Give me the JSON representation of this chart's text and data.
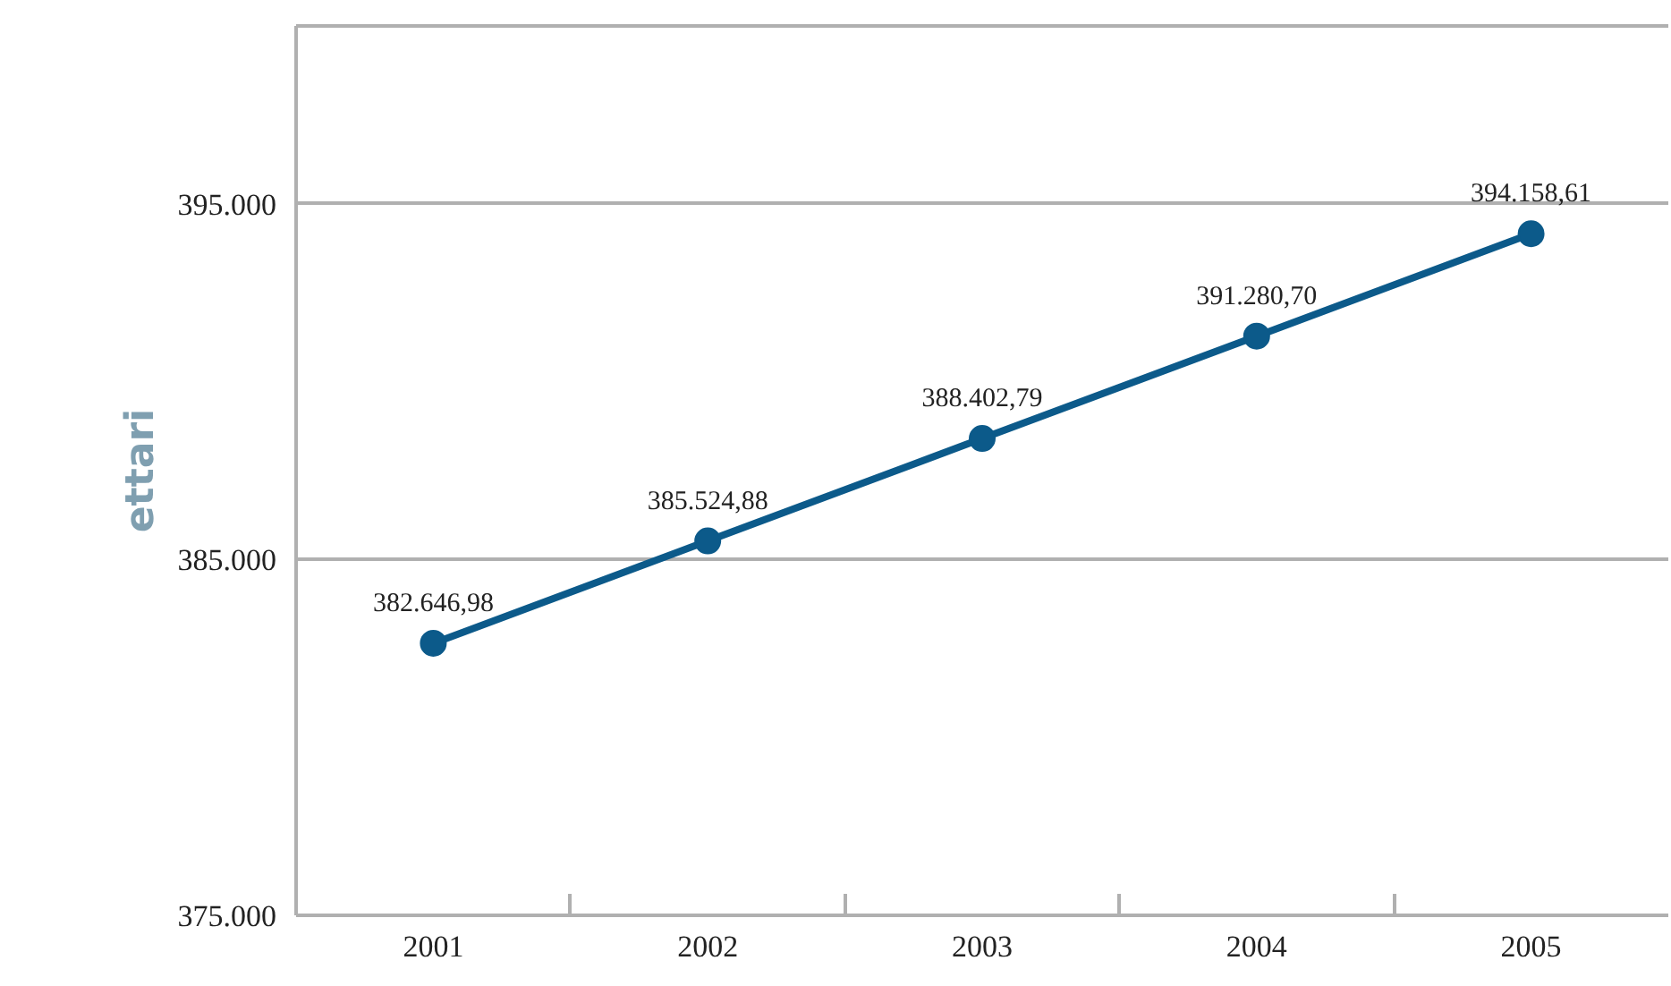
{
  "chart_data": {
    "type": "line",
    "ylabel": "ettari",
    "categories": [
      "2001",
      "2002",
      "2003",
      "2004",
      "2005"
    ],
    "series": [
      {
        "color": "#0c5a8a",
        "values": [
          382646.98,
          385524.88,
          388402.79,
          391280.7,
          394158.61
        ],
        "value_labels": [
          "382.646,98",
          "385.524,88",
          "388.402,79",
          "391.280,70",
          "394.158,61"
        ]
      }
    ],
    "ylim": [
      375000,
      400000
    ],
    "yticks": [
      {
        "value": 375000,
        "label": "375.000"
      },
      {
        "value": 385000,
        "label": "385.000"
      },
      {
        "value": 395000,
        "label": "395.000"
      }
    ],
    "grid": "y",
    "marker": "circle",
    "line_style": "solid"
  }
}
